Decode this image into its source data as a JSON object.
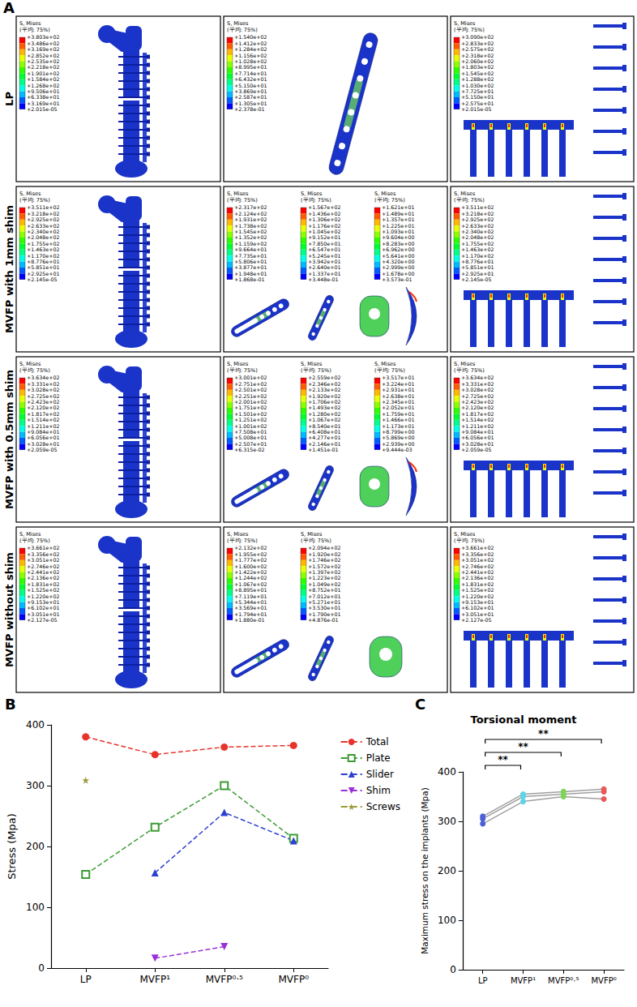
{
  "panel_A": {
    "label": "A",
    "legend_title": "S, Mises",
    "legend_note": "(平均: 75%)",
    "rows": [
      {
        "label": "LP",
        "femur": [
          "+3.803e+02",
          "+3.486e+02",
          "+3.169e+02",
          "+2.852e+02",
          "+2.535e+02",
          "+2.218e+02",
          "+1.901e+02",
          "+1.584e+02",
          "+1.268e+02",
          "+9.506e+01",
          "+6.338e+01",
          "+3.169e+01",
          "+2.015e-05"
        ],
        "implants": [
          [
            "+1.540e+02",
            "+1.412e+02",
            "+1.284e+02",
            "+1.156e+02",
            "+1.028e+02",
            "+8.995e+01",
            "+7.714e+01",
            "+6.432e+01",
            "+5.150e+01",
            "+3.869e+01",
            "+2.587e+01",
            "+1.305e+01",
            "+2.378e-01"
          ]
        ],
        "screws": [
          "+3.090e+02",
          "+2.833e+02",
          "+2.575e+02",
          "+2.318e+02",
          "+2.060e+02",
          "+1.803e+02",
          "+1.545e+02",
          "+1.288e+02",
          "+1.030e+02",
          "+7.725e+01",
          "+5.150e+01",
          "+2.575e+01",
          "+2.015e-05"
        ]
      },
      {
        "label": "MVFP with 1mm shim",
        "femur": [
          "+3.511e+02",
          "+3.218e+02",
          "+2.925e+02",
          "+2.633e+02",
          "+2.340e+02",
          "+2.048e+02",
          "+1.755e+02",
          "+1.463e+02",
          "+1.170e+02",
          "+8.776e+01",
          "+5.851e+01",
          "+2.925e+01",
          "+2.145e-05"
        ],
        "implants": [
          [
            "+2.317e+02",
            "+2.124e+02",
            "+1.931e+02",
            "+1.738e+02",
            "+1.545e+02",
            "+1.352e+02",
            "+1.159e+02",
            "+9.664e+01",
            "+7.735e+01",
            "+5.806e+01",
            "+3.877e+01",
            "+1.948e+01",
            "+1.868e-01"
          ],
          [
            "+1.567e+02",
            "+1.436e+02",
            "+1.306e+02",
            "+1.176e+02",
            "+1.045e+02",
            "+9.152e+01",
            "+7.850e+01",
            "+6.547e+01",
            "+5.245e+01",
            "+3.942e+01",
            "+2.640e+01",
            "+1.337e+01",
            "+3.448e-01"
          ],
          [
            "+1.621e+01",
            "+1.489e+01",
            "+1.357e+01",
            "+1.225e+01",
            "+1.093e+01",
            "+9.604e+00",
            "+8.283e+00",
            "+6.962e+00",
            "+5.641e+00",
            "+4.320e+00",
            "+2.999e+00",
            "+1.678e+00",
            "+3.573e-01"
          ]
        ],
        "screws": [
          "+3.511e+02",
          "+3.218e+02",
          "+2.925e+02",
          "+2.633e+02",
          "+2.340e+02",
          "+2.048e+02",
          "+1.755e+02",
          "+1.463e+02",
          "+1.170e+02",
          "+8.776e+01",
          "+5.851e+01",
          "+2.925e+01",
          "+2.145e-05"
        ]
      },
      {
        "label": "MVFP with 0.5mm shim",
        "femur": [
          "+3.634e+02",
          "+3.331e+02",
          "+3.028e+02",
          "+2.725e+02",
          "+2.423e+02",
          "+2.120e+02",
          "+1.817e+02",
          "+1.514e+02",
          "+1.211e+02",
          "+9.084e+01",
          "+6.056e+01",
          "+3.028e+01",
          "+2.059e-05"
        ],
        "implants": [
          [
            "+3.001e+02",
            "+2.751e+02",
            "+2.501e+02",
            "+2.251e+02",
            "+2.001e+02",
            "+1.751e+02",
            "+1.501e+02",
            "+1.251e+02",
            "+1.001e+02",
            "+7.508e+01",
            "+5.008e+01",
            "+2.507e+01",
            "+6.315e-02"
          ],
          [
            "+2.559e+02",
            "+2.346e+02",
            "+2.133e+02",
            "+1.920e+02",
            "+1.706e+02",
            "+1.493e+02",
            "+1.280e+02",
            "+1.067e+02",
            "+8.540e+01",
            "+6.408e+01",
            "+4.277e+01",
            "+2.146e+01",
            "+1.451e-01"
          ],
          [
            "+3.517e+01",
            "+3.224e+01",
            "+2.931e+01",
            "+2.638e+01",
            "+2.345e+01",
            "+2.052e+01",
            "+1.759e+01",
            "+1.466e+01",
            "+1.173e+01",
            "+8.799e+00",
            "+5.869e+00",
            "+2.939e+00",
            "+9.444e-03"
          ]
        ],
        "screws": [
          "+3.634e+02",
          "+3.331e+02",
          "+3.028e+02",
          "+2.725e+02",
          "+2.423e+02",
          "+2.120e+02",
          "+1.817e+02",
          "+1.514e+02",
          "+1.211e+02",
          "+9.084e+01",
          "+6.056e+01",
          "+3.028e+01",
          "+2.059e-05"
        ]
      },
      {
        "label": "MVFP without shim",
        "femur": [
          "+3.661e+02",
          "+3.356e+02",
          "+3.051e+02",
          "+2.746e+02",
          "+2.441e+02",
          "+2.136e+02",
          "+1.831e+02",
          "+1.525e+02",
          "+1.220e+02",
          "+9.153e+01",
          "+6.102e+01",
          "+3.051e+01",
          "+2.127e-05"
        ],
        "implants": [
          [
            "+2.132e+02",
            "+1.955e+02",
            "+1.777e+02",
            "+1.600e+02",
            "+1.422e+02",
            "+1.244e+02",
            "+1.067e+02",
            "+8.895e+01",
            "+7.119e+01",
            "+5.344e+01",
            "+3.569e+01",
            "+1.794e+01",
            "+1.880e-01"
          ],
          [
            "+2.094e+02",
            "+1.920e+02",
            "+1.746e+02",
            "+1.572e+02",
            "+1.397e+02",
            "+1.223e+02",
            "+1.049e+02",
            "+8.752e+01",
            "+7.012e+01",
            "+5.271e+01",
            "+3.530e+01",
            "+1.790e+01",
            "+4.876e-01"
          ]
        ],
        "screws": [
          "+3.661e+02",
          "+3.356e+02",
          "+3.051e+02",
          "+2.746e+02",
          "+2.441e+02",
          "+2.136e+02",
          "+1.831e+02",
          "+1.525e+02",
          "+1.220e+02",
          "+9.153e+01",
          "+6.102e+01",
          "+3.051e+01",
          "+2.127e-05"
        ]
      }
    ]
  },
  "chart_data": [
    {
      "panel": "B",
      "type": "line",
      "categories": [
        "LP",
        "MVFP¹",
        "MVFP⁰·⁵",
        "MVFP⁰"
      ],
      "y_label": "Stress (Mpa)",
      "ylim": [
        0,
        400
      ],
      "yticks": [
        0,
        100,
        200,
        300,
        400
      ],
      "grid": false,
      "legend": "right",
      "series": [
        {
          "name": "Total",
          "color": "#e8332a",
          "marker": "circle",
          "line_style": "dashed",
          "values": [
            380.3,
            351.1,
            363.4,
            366.1
          ]
        },
        {
          "name": "Plate",
          "color": "#3d9b35",
          "marker": "square_open",
          "line_style": "dashed",
          "values": [
            154.0,
            231.7,
            300.1,
            213.2
          ]
        },
        {
          "name": "Slider",
          "color": "#2b3fd1",
          "marker": "triangle",
          "line_style": "dashed",
          "values": [
            null,
            156.7,
            255.9,
            209.4
          ]
        },
        {
          "name": "Shim",
          "color": "#9a2fd6",
          "marker": "triangle_down",
          "line_style": "dashed",
          "values": [
            null,
            16.21,
            35.17,
            null
          ]
        },
        {
          "name": "Screws",
          "color": "#9c9a3c",
          "marker": "star",
          "line_style": "dashed",
          "values": [
            309.0,
            null,
            null,
            null
          ]
        }
      ]
    },
    {
      "panel": "C",
      "type": "line",
      "title": "Torsional moment",
      "categories": [
        "LP",
        "MVFP¹",
        "MVFP⁰·⁵",
        "MVFP⁰"
      ],
      "y_label": "Maximum stress on the implants (Mpa)",
      "ylim": [
        0,
        400
      ],
      "yticks": [
        0,
        100,
        200,
        300,
        400
      ],
      "grid": false,
      "colors": [
        "#4a5fd8",
        "#5fd3e8",
        "#7fd35a",
        "#e85a5a"
      ],
      "series": [
        {
          "color": "#a0a0a0",
          "marker": "circle",
          "line_style": "solid",
          "values": [
            295,
            340,
            350,
            345
          ]
        },
        {
          "color": "#a0a0a0",
          "marker": "circle",
          "line_style": "solid",
          "values": [
            305,
            350,
            355,
            360
          ]
        },
        {
          "color": "#a0a0a0",
          "marker": "circle",
          "line_style": "solid",
          "values": [
            310,
            355,
            360,
            365
          ]
        }
      ],
      "significance": [
        {
          "between": [
            "LP",
            "MVFP¹"
          ],
          "label": "**"
        },
        {
          "between": [
            "LP",
            "MVFP⁰·⁵"
          ],
          "label": "**"
        },
        {
          "between": [
            "LP",
            "MVFP⁰"
          ],
          "label": "**"
        }
      ]
    }
  ]
}
